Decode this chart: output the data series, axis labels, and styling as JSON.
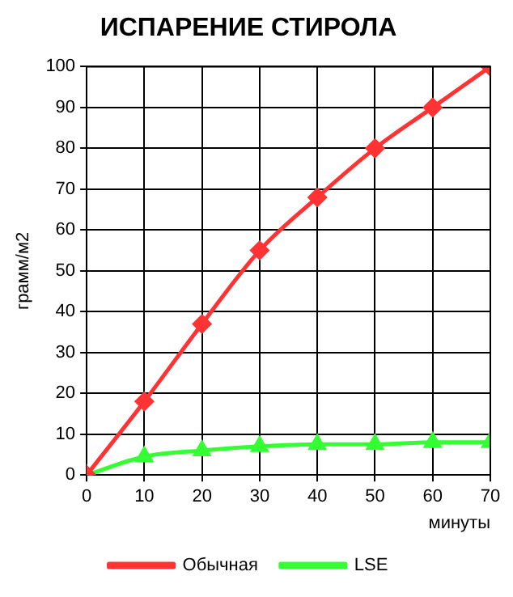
{
  "chart_data": {
    "type": "line",
    "title": "ИСПАРЕНИЕ СТИРОЛА",
    "xlabel": "минуты",
    "ylabel": "грамм/м2",
    "x": [
      0,
      10,
      20,
      30,
      40,
      50,
      60,
      70
    ],
    "series": [
      {
        "name": "Обычная",
        "color": "#ff3333",
        "marker": "diamond",
        "values": [
          0,
          18,
          37,
          55,
          68,
          80,
          90,
          100
        ]
      },
      {
        "name": "LSE",
        "color": "#33ff33",
        "marker": "triangle",
        "values": [
          0,
          4.5,
          6,
          7,
          7.5,
          7.5,
          8,
          8
        ]
      }
    ],
    "xlim": [
      0,
      70
    ],
    "xticks": [
      0,
      10,
      20,
      30,
      40,
      50,
      60,
      70
    ],
    "ylim": [
      0,
      100
    ],
    "yticks": [
      0,
      10,
      20,
      30,
      40,
      50,
      60,
      70,
      80,
      90,
      100
    ],
    "grid": true,
    "legend": "bottom",
    "line_style": "solid"
  }
}
